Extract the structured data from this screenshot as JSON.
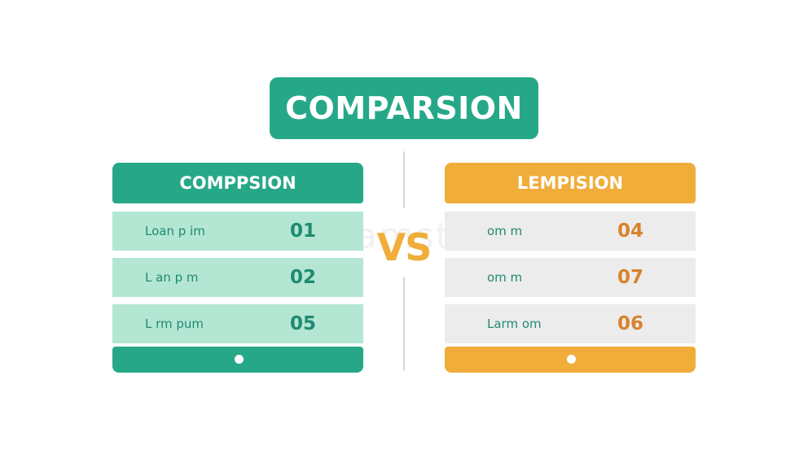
{
  "title": "COMPARSION",
  "vs_label": "VS",
  "watermark": "dreamstime",
  "colors": {
    "teal": "#26a888",
    "teal_light": "#b3e6d3",
    "teal_text": "#1f8a72",
    "orange": "#f0ad3a",
    "grey_row": "#ececec",
    "orange_text": "#d9822b"
  },
  "left": {
    "header": "COMPPSION",
    "rows": [
      {
        "label": "Loan p im",
        "value": "01"
      },
      {
        "label": "L an p m",
        "value": "02"
      },
      {
        "label": "L rm pum",
        "value": "05"
      }
    ]
  },
  "right": {
    "header": "LEMPISION",
    "rows": [
      {
        "label": "om    m",
        "value": "04"
      },
      {
        "label": "om    m",
        "value": "07"
      },
      {
        "label": "Larm    om",
        "value": "06"
      }
    ]
  }
}
